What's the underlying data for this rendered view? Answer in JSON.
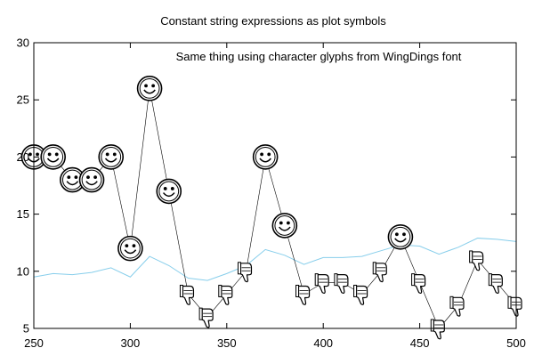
{
  "chart_data": {
    "type": "line",
    "title": "Constant string expressions as plot symbols",
    "annotation": "Same thing using character glyphs from WingDings font",
    "xlim": [
      250,
      500
    ],
    "ylim": [
      5,
      30
    ],
    "x_ticks": [
      250,
      300,
      350,
      400,
      450,
      500
    ],
    "y_ticks": [
      5,
      10,
      15,
      20,
      25,
      30
    ],
    "grid": false,
    "series": [
      {
        "color": "#000000",
        "marker": "symbol-by-value",
        "x": [
          250,
          260,
          270,
          280,
          290,
          300,
          310,
          320,
          330,
          340,
          350,
          360,
          370,
          380,
          390,
          400,
          410,
          420,
          430,
          440,
          450,
          460,
          470,
          480,
          490,
          500
        ],
        "y": [
          20,
          20,
          18,
          18,
          20,
          12,
          26,
          17,
          8,
          6,
          8,
          10,
          20,
          14,
          8,
          9,
          9,
          8,
          10,
          13,
          9,
          5,
          7,
          11,
          9,
          7
        ]
      },
      {
        "color": "#87ceeb",
        "marker": "none",
        "x": [
          250,
          260,
          270,
          280,
          290,
          300,
          310,
          320,
          330,
          340,
          350,
          360,
          370,
          380,
          390,
          400,
          410,
          420,
          430,
          440,
          450,
          460,
          470,
          480,
          490,
          500
        ],
        "y": [
          9.5,
          9.8,
          9.7,
          9.9,
          10.3,
          9.5,
          11.3,
          10.5,
          9.4,
          9.2,
          9.8,
          10.5,
          11.9,
          11.4,
          10.6,
          11.2,
          11.2,
          11.3,
          11.8,
          12.3,
          12.2,
          11.5,
          12.1,
          12.9,
          12.8,
          12.6
        ]
      }
    ]
  }
}
